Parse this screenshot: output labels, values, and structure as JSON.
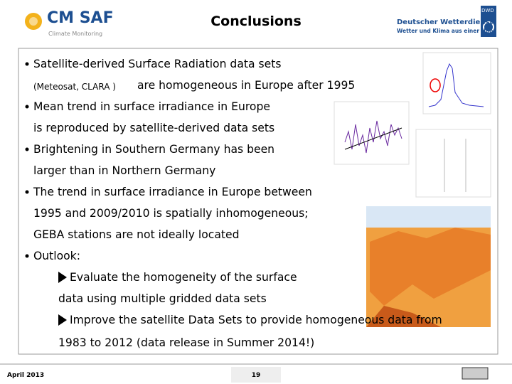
{
  "header": {
    "logo": "CM SAF",
    "logo_subtitle": "Climate Monitoring",
    "title": "Conclusions",
    "org": "Deutscher Wetterdienst",
    "org_tagline": "Wetter und Klima aus einer Hand",
    "org_badge": "DWD"
  },
  "bullets": [
    {
      "lines": [
        "Satellite-derived Surface Radiation data sets",
        "(Meteosat, CLARA )",
        "are homogeneous in Europe after 1995"
      ]
    },
    {
      "lines": [
        "Mean trend in surface irradiance in Europe",
        "is reproduced by satellite-derived data sets"
      ]
    },
    {
      "lines": [
        "Brightening in Southern Germany has been",
        "larger than in Northern Germany"
      ]
    },
    {
      "lines": [
        "The trend in surface irradiance in Europe between",
        "1995 and 2009/2010 is spatially inhomogeneous;",
        "GEBA stations are not ideally located"
      ]
    },
    {
      "lines": [
        "Outlook:"
      ],
      "subpoints": [
        {
          "lines": [
            "Evaluate the homogeneity of the surface",
            "data using multiple gridded data sets"
          ]
        },
        {
          "lines": [
            "Improve the satellite Data Sets to provide homogeneous data from",
            "1983 to 2012 (data release in Summer 2014!)"
          ]
        }
      ]
    }
  ],
  "footer": {
    "date": "April 2013",
    "page": "19"
  }
}
